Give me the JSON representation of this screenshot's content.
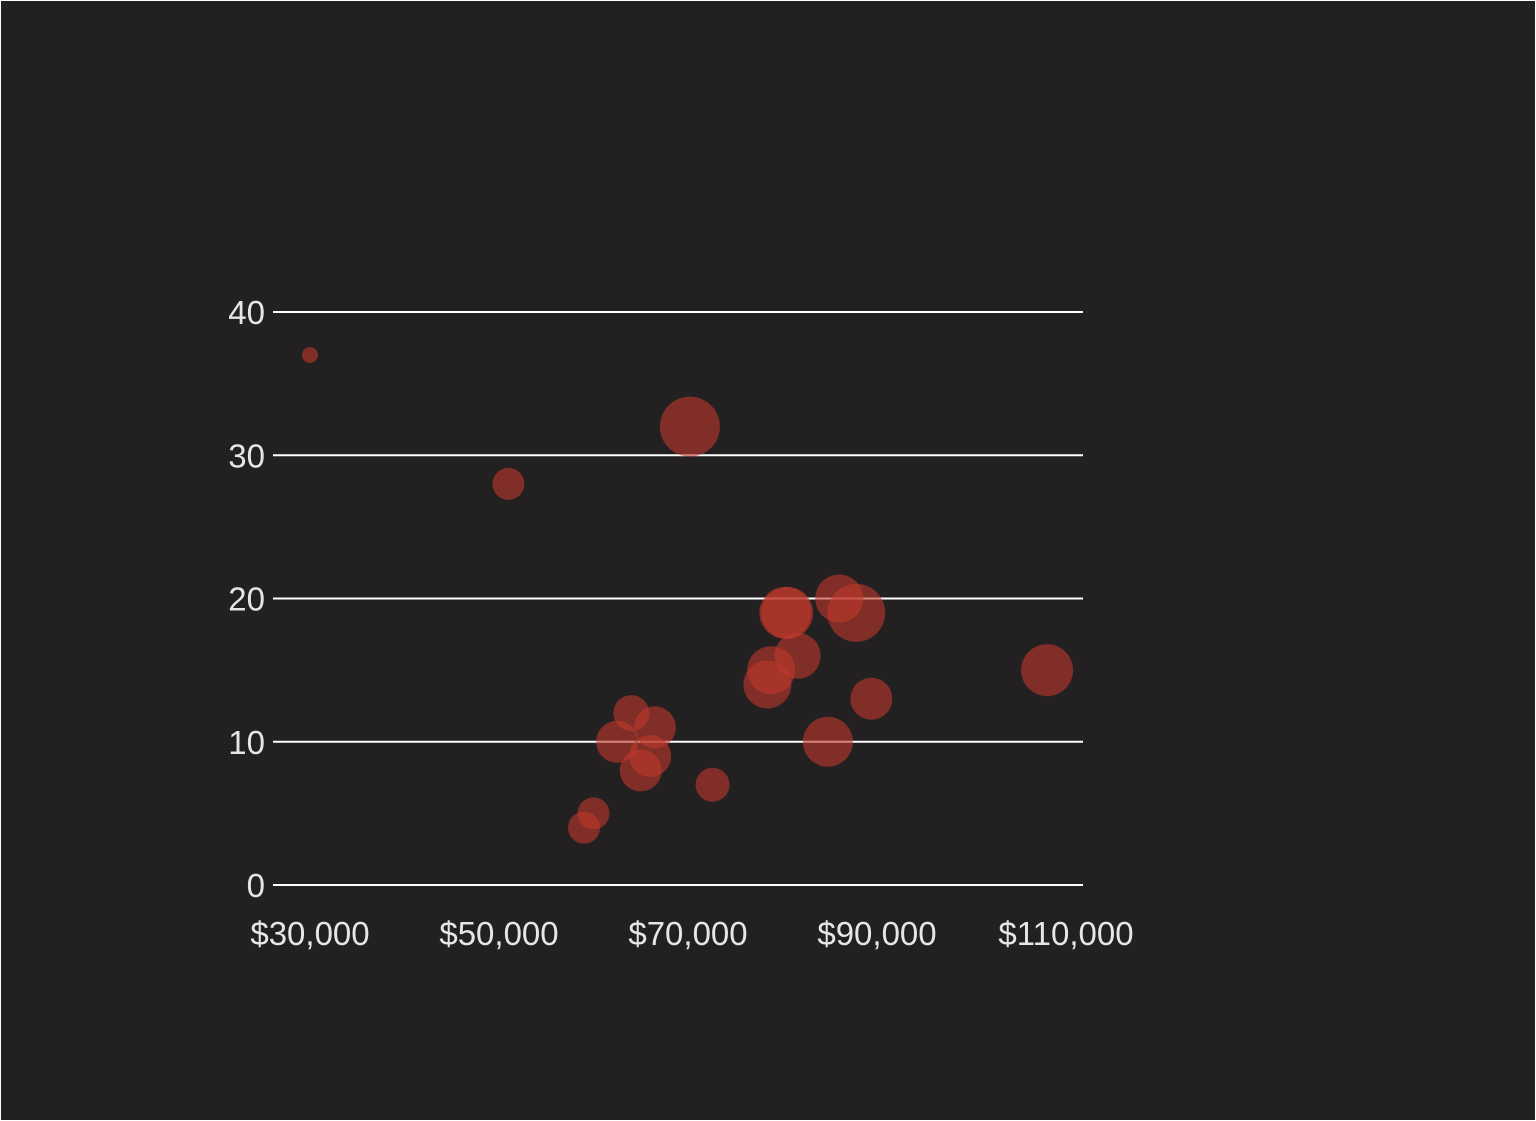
{
  "chart_data": {
    "type": "scatter",
    "variant": "bubble",
    "title": "",
    "xlabel": "",
    "ylabel": "",
    "x_ticks": [
      "$30,000",
      "$50,000",
      "$70,000",
      "$90,000",
      "$110,000"
    ],
    "x_tick_values": [
      30000,
      50000,
      70000,
      90000,
      110000
    ],
    "y_ticks": [
      "0",
      "10",
      "20",
      "30",
      "40"
    ],
    "y_tick_values": [
      0,
      10,
      20,
      30,
      40
    ],
    "xlim": [
      26000,
      114000
    ],
    "ylim": [
      0,
      40
    ],
    "grid": "horizontal",
    "legend": "none",
    "colors": {
      "background": "#222021",
      "bubble": "#c0392b",
      "gridline": "#ffffff",
      "text": "#e6e6e6"
    },
    "size_unit": "relative bubble radius",
    "points": [
      {
        "x": 30000,
        "y": 37,
        "size": 8
      },
      {
        "x": 51000,
        "y": 28,
        "size": 16
      },
      {
        "x": 70200,
        "y": 32,
        "size": 30
      },
      {
        "x": 59000,
        "y": 4,
        "size": 16
      },
      {
        "x": 60000,
        "y": 5,
        "size": 16
      },
      {
        "x": 62500,
        "y": 10,
        "size": 21
      },
      {
        "x": 64000,
        "y": 12,
        "size": 18
      },
      {
        "x": 65000,
        "y": 8,
        "size": 21
      },
      {
        "x": 66000,
        "y": 9,
        "size": 21
      },
      {
        "x": 66500,
        "y": 11,
        "size": 21
      },
      {
        "x": 72600,
        "y": 7,
        "size": 17
      },
      {
        "x": 78400,
        "y": 14,
        "size": 24
      },
      {
        "x": 78800,
        "y": 15,
        "size": 24
      },
      {
        "x": 80300,
        "y": 19,
        "size": 26
      },
      {
        "x": 80500,
        "y": 19,
        "size": 26
      },
      {
        "x": 81600,
        "y": 16,
        "size": 23
      },
      {
        "x": 84800,
        "y": 10,
        "size": 25
      },
      {
        "x": 86000,
        "y": 20,
        "size": 24
      },
      {
        "x": 87800,
        "y": 19,
        "size": 29
      },
      {
        "x": 89400,
        "y": 13,
        "size": 21
      },
      {
        "x": 108000,
        "y": 15,
        "size": 26
      }
    ]
  }
}
